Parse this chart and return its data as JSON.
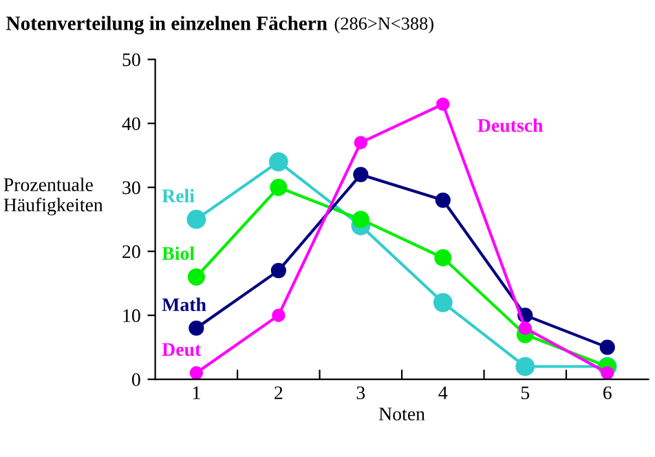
{
  "chart_data": {
    "type": "line",
    "title": "Notenverteilung in einzelnen Fächern",
    "subtitle": "(286>N<388)",
    "xlabel": "Noten",
    "ylabel": "Prozentuale\nHäufigkeiten",
    "categories": [
      "1",
      "2",
      "3",
      "4",
      "5",
      "6"
    ],
    "series": [
      {
        "name": "Reli",
        "color": "#33cccc",
        "values": [
          25,
          34,
          24,
          12,
          2,
          2
        ]
      },
      {
        "name": "Biol",
        "color": "#00ee00",
        "values": [
          16,
          30,
          25,
          19,
          7,
          2
        ]
      },
      {
        "name": "Math",
        "color": "#000080",
        "values": [
          8,
          17,
          32,
          28,
          10,
          5
        ]
      },
      {
        "name": "Deut",
        "color": "#ff00ff",
        "values": [
          1,
          10,
          37,
          43,
          8,
          1
        ]
      }
    ],
    "annotations": [
      {
        "text": "Deutsch",
        "x": "4",
        "y": 43
      }
    ],
    "ylim": [
      0,
      50
    ],
    "yticks": [
      0,
      10,
      20,
      30,
      40,
      50
    ],
    "grid": false,
    "legend": false,
    "marker": "circle",
    "line_style": "solid"
  }
}
